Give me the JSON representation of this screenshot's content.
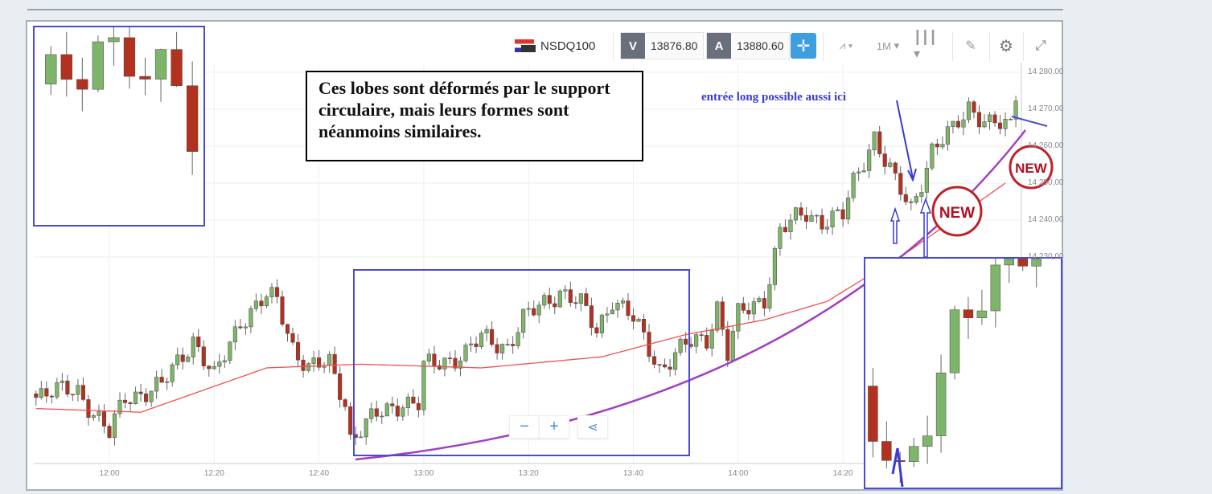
{
  "toolbar": {
    "symbol": "NSDQ100",
    "sell_label": "V",
    "sell_price": "13876.80",
    "buy_label": "A",
    "buy_price": "13880.60",
    "timeframe": "1M",
    "icons": [
      "flag-icon",
      "crosshair-icon",
      "chart-type-icon",
      "candlestick-icon",
      "draw-icon",
      "gear-icon",
      "expand-icon"
    ]
  },
  "zoom_controls": {
    "minus": "−",
    "plus": "+",
    "share_icon": "share-icon"
  },
  "annotations": {
    "box_text": "Ces lobes sont déformés par le support circulaire, mais leurs formes sont néanmoins similaires.",
    "arrow_text": "entrée long possible aussi ici",
    "badge": "NEW"
  },
  "chart_data": {
    "type": "candlestick",
    "timeframe": "1M",
    "x_ticks": [
      "12:00",
      "12:20",
      "12:40",
      "13:00",
      "13:20",
      "13:40",
      "14:00",
      "14:20"
    ],
    "y_ticks": [
      {
        "value": 14280,
        "label": "14 280,00"
      },
      {
        "value": 14270,
        "label": "14 270,00"
      },
      {
        "value": 14260,
        "label": "14 260,00"
      },
      {
        "value": 14250,
        "label": "14 250,00"
      },
      {
        "value": 14240,
        "label": "14 240,00"
      },
      {
        "value": 14230,
        "label": "14 230,00"
      }
    ],
    "ylim": [
      14175,
      14285
    ],
    "grid": true,
    "price_path": {
      "time": [
        "11:46",
        "11:54",
        "12:00",
        "12:03",
        "12:10",
        "12:16",
        "12:20",
        "12:25",
        "12:30",
        "12:32",
        "12:35",
        "12:38",
        "12:42",
        "12:45",
        "12:46",
        "12:51",
        "12:56",
        "12:59",
        "13:00",
        "13:08",
        "13:11",
        "13:16",
        "13:19",
        "13:26",
        "13:30",
        "13:33",
        "13:36",
        "13:40",
        "13:45",
        "13:50",
        "13:54",
        "13:56",
        "13:58",
        "14:00",
        "14:05",
        "14:08",
        "14:13",
        "14:16",
        "14:20",
        "14:22",
        "14:26",
        "14:28",
        "14:30",
        "14:33",
        "14:35",
        "14:37",
        "14:41",
        "14:44",
        "14:48",
        "14:52",
        "14:53",
        "14:54"
      ],
      "close": [
        14193,
        14194,
        14182,
        14192,
        14195,
        14208,
        14197,
        14213,
        14219,
        14218,
        14206,
        14200,
        14201,
        14191,
        14181,
        14187,
        14191,
        14190,
        14200,
        14204,
        14208,
        14206,
        14213,
        14221,
        14217,
        14210,
        14219,
        14213,
        14200,
        14206,
        14208,
        14217,
        14204,
        14214,
        14219,
        14237,
        14242,
        14240,
        14241,
        14250,
        14263,
        14256,
        14250,
        14243,
        14251,
        14259,
        14264,
        14271,
        14266,
        14265,
        14274,
        14278
      ]
    },
    "moving_average": {
      "time": [
        "11:46",
        "12:06",
        "12:30",
        "12:48",
        "13:11",
        "13:34",
        "13:50",
        "14:05",
        "14:17",
        "14:33",
        "14:51"
      ],
      "value": [
        14189,
        14188,
        14200,
        14201,
        14200,
        14203,
        14209,
        14213,
        14218,
        14232,
        14250
      ]
    },
    "colors": {
      "up": "#7fb56b",
      "down": "#b3321f",
      "ma": "#f25050",
      "support_curve": "#a040c0",
      "highlight": "#4a4ad8",
      "crosshair_button": "#3d9ee0"
    }
  }
}
